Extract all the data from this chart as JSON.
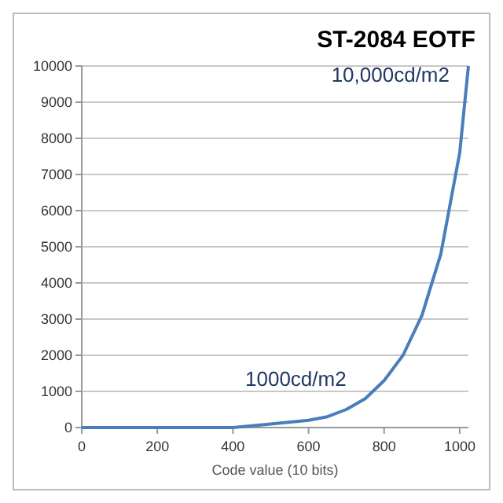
{
  "chart_data": {
    "type": "line",
    "title": "ST-2084 EOTF",
    "xlabel": "Code value (10 bits)",
    "x": [
      0,
      100,
      200,
      300,
      400,
      500,
      600,
      650,
      700,
      750,
      800,
      850,
      900,
      950,
      1000,
      1023
    ],
    "series": [
      {
        "color": "#4a7ebb",
        "values": [
          0,
          0,
          0,
          0,
          0,
          100,
          200,
          300,
          500,
          800,
          1300,
          2000,
          3100,
          4800,
          7600,
          10000
        ]
      }
    ],
    "xlim": [
      0,
      1023
    ],
    "xticks": [
      0,
      200,
      400,
      600,
      800,
      1000
    ],
    "ylim": [
      0,
      10000
    ],
    "yticks": [
      0,
      1000,
      2000,
      3000,
      4000,
      5000,
      6000,
      7000,
      8000,
      9000,
      10000
    ],
    "grid": "y",
    "marker": "none",
    "line_style": "solid",
    "annotations": [
      {
        "text": "10,000cd/m2",
        "x": 1023,
        "y": 10000
      },
      {
        "text": "1000cd/m2",
        "x": 750,
        "y": 800
      }
    ]
  }
}
